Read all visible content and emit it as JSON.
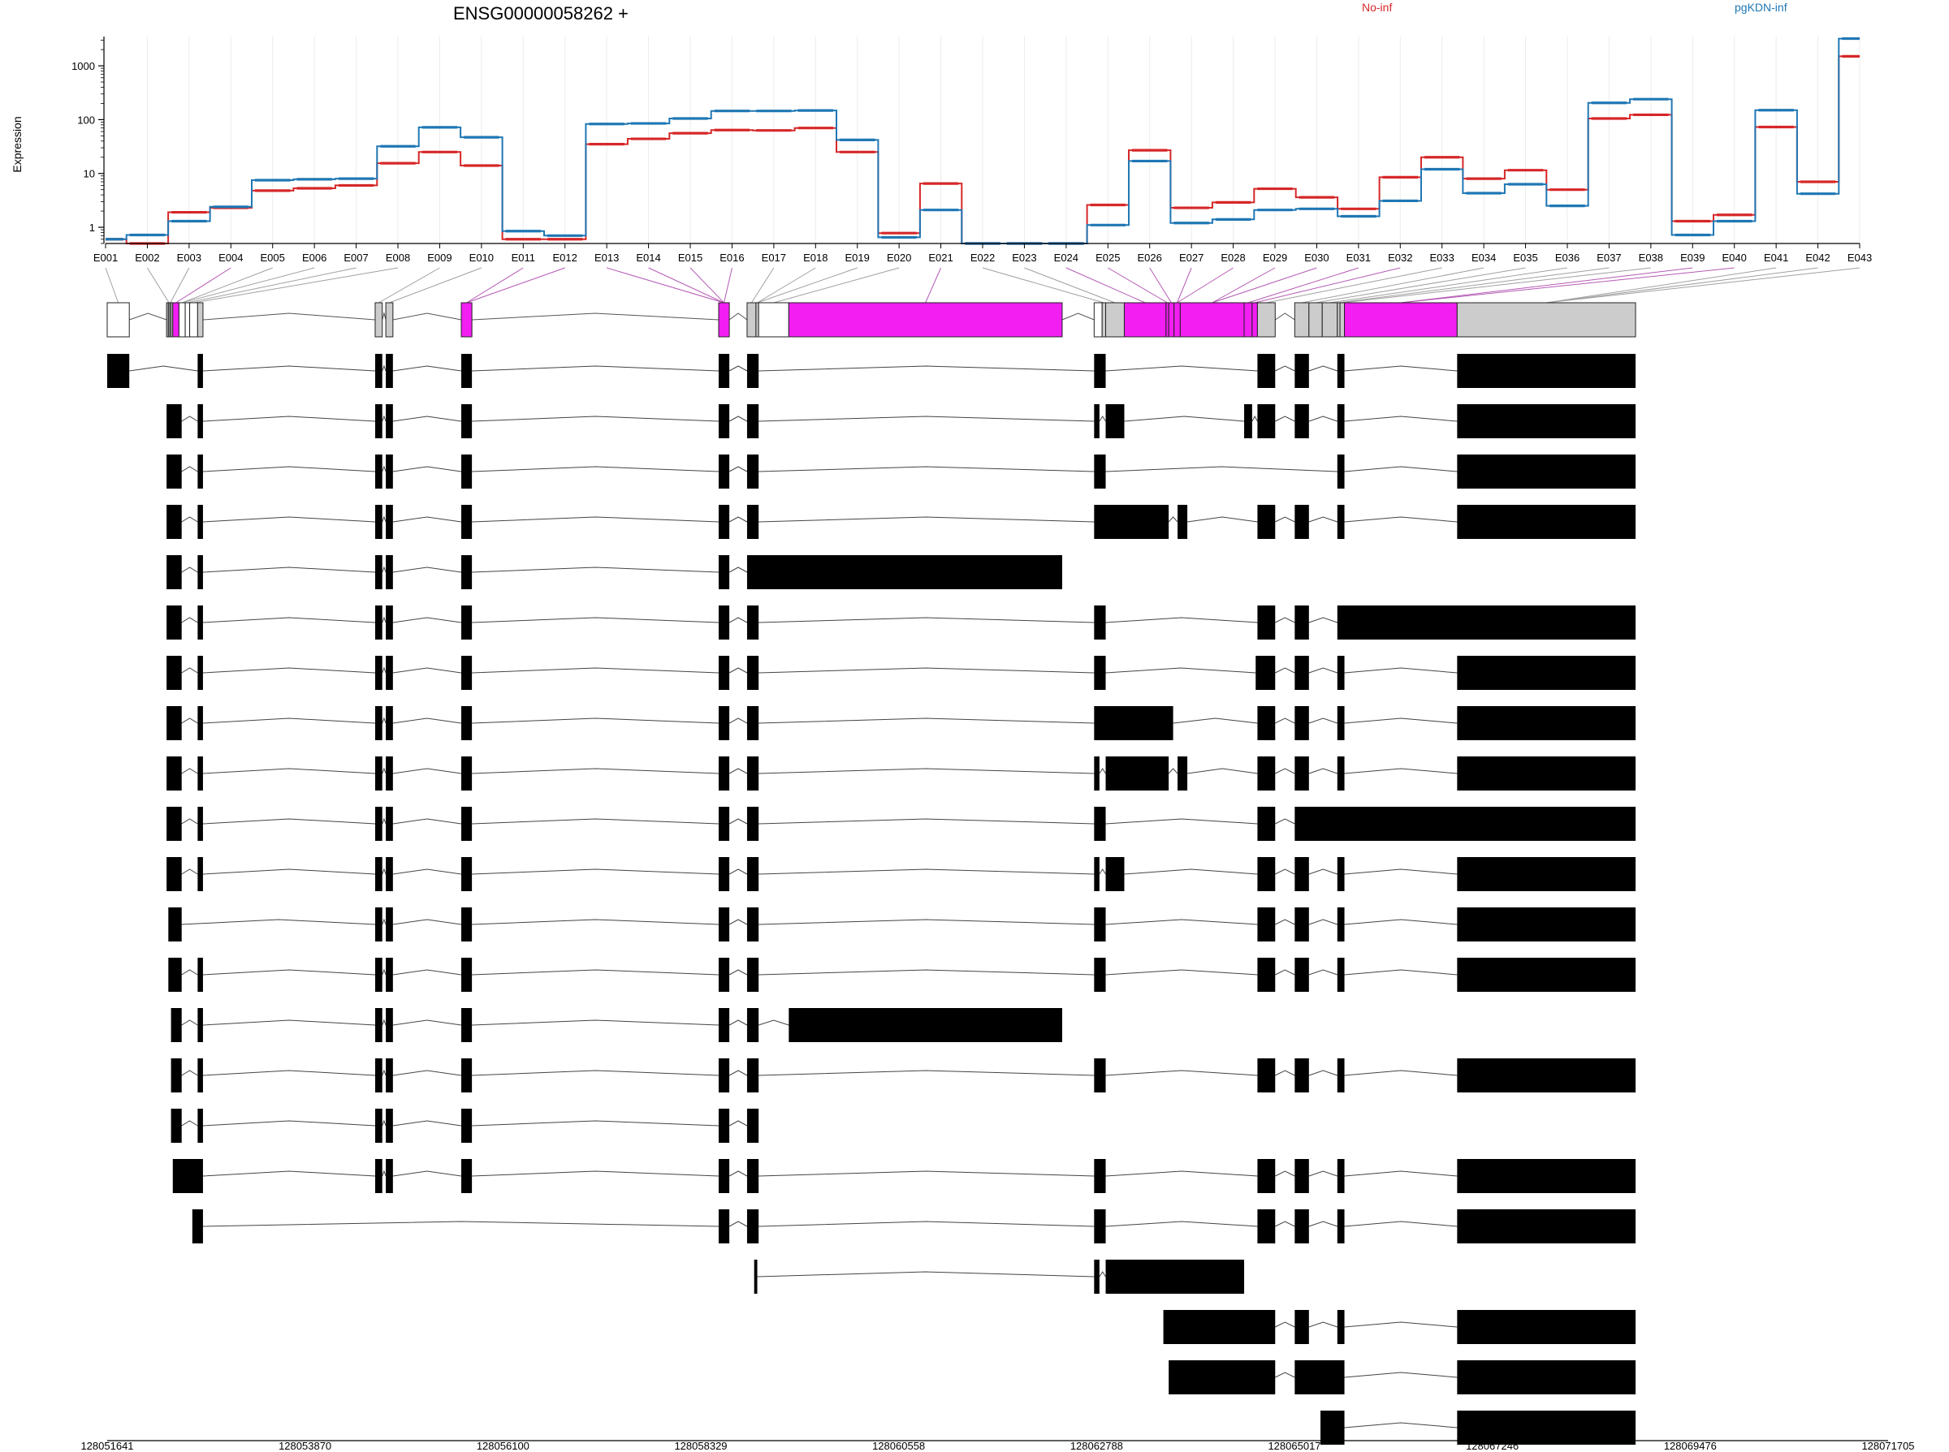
{
  "chart_data": {
    "type": "line",
    "title": "ENSG00000058262 +",
    "ylabel": "Expression",
    "yscale": "log",
    "ylim": [
      0.5,
      3500
    ],
    "yticks": [
      "1",
      "10",
      "100",
      "1000"
    ],
    "legend_placement": "top",
    "categories": [
      "E001",
      "E002",
      "E003",
      "E004",
      "E005",
      "E006",
      "E007",
      "E008",
      "E009",
      "E010",
      "E011",
      "E012",
      "E013",
      "E014",
      "E015",
      "E016",
      "E017",
      "E018",
      "E019",
      "E020",
      "E021",
      "E022",
      "E023",
      "E024",
      "E025",
      "E026",
      "E027",
      "E028",
      "E029",
      "E030",
      "E031",
      "E032",
      "E033",
      "E034",
      "E035",
      "E036",
      "E037",
      "E038",
      "E039",
      "E040",
      "E041",
      "E042",
      "E043"
    ],
    "series": [
      {
        "name": "No-inf",
        "color": "#d62728",
        "values": [
          0.6,
          0.5,
          1.9,
          2.3,
          4.8,
          5.3,
          6.0,
          15.5,
          25,
          14,
          0.6,
          0.6,
          35,
          44,
          56,
          64,
          63,
          70,
          25,
          0.78,
          6.5,
          0.5,
          0.5,
          0.5,
          2.6,
          27,
          2.3,
          2.9,
          5.2,
          3.6,
          2.2,
          8.5,
          20,
          8.0,
          11.5,
          5.0,
          105,
          123,
          1.3,
          1.7,
          73,
          7.0,
          1500
        ]
      },
      {
        "name": "pgKDN-inf",
        "color": "#1f77b4",
        "values": [
          0.6,
          0.72,
          1.3,
          2.4,
          7.5,
          7.8,
          8.0,
          32,
          72,
          47,
          0.85,
          0.7,
          83,
          85,
          105,
          145,
          145,
          148,
          42,
          0.65,
          2.1,
          0.5,
          0.5,
          0.5,
          1.1,
          17,
          1.2,
          1.4,
          2.1,
          2.2,
          1.6,
          3.1,
          12,
          4.3,
          6.3,
          2.5,
          205,
          240,
          0.72,
          1.3,
          150,
          4.2,
          3200
        ]
      }
    ],
    "genomic_axis": {
      "ticks": [
        "128051641",
        "128053870",
        "128056100",
        "128058329",
        "128060558",
        "128062788",
        "128065017",
        "128067246",
        "128069476",
        "128071705"
      ]
    }
  }
}
